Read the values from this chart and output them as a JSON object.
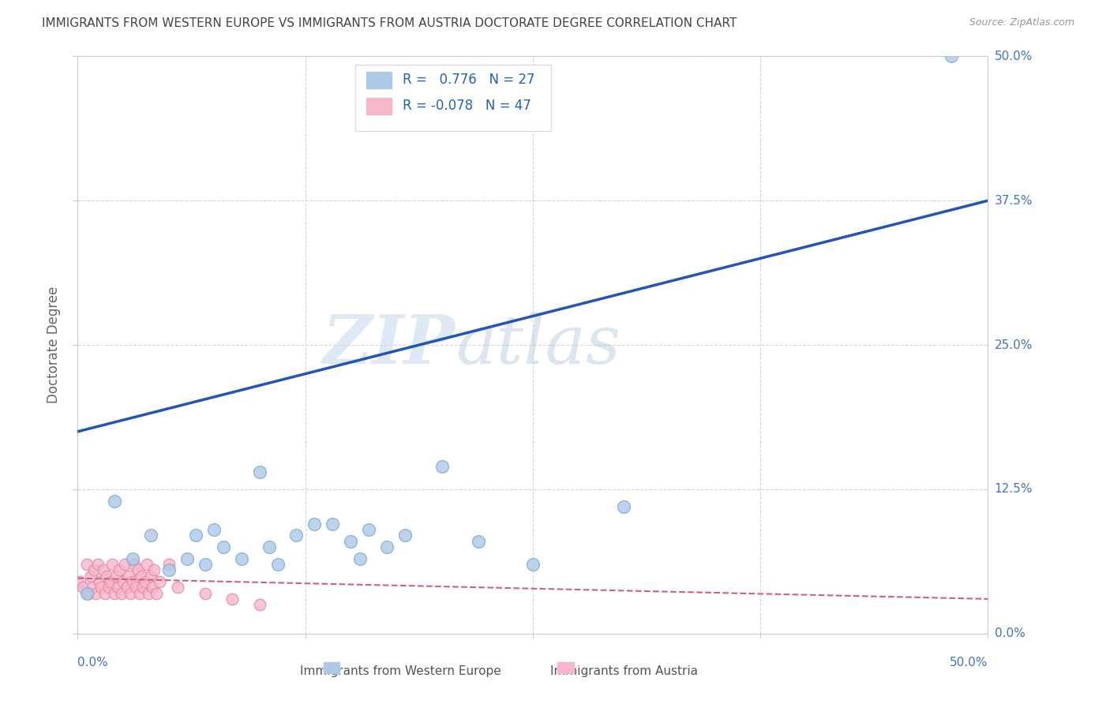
{
  "title": "IMMIGRANTS FROM WESTERN EUROPE VS IMMIGRANTS FROM AUSTRIA DOCTORATE DEGREE CORRELATION CHART",
  "source": "Source: ZipAtlas.com",
  "ylabel": "Doctorate Degree",
  "xlim": [
    0.0,
    0.5
  ],
  "ylim": [
    0.0,
    0.5
  ],
  "ytick_labels": [
    "0.0%",
    "12.5%",
    "25.0%",
    "37.5%",
    "50.0%"
  ],
  "ytick_values": [
    0.0,
    0.125,
    0.25,
    0.375,
    0.5
  ],
  "xtick_values": [
    0.0,
    0.125,
    0.25,
    0.375,
    0.5
  ],
  "watermark_zip": "ZIP",
  "watermark_atlas": "atlas",
  "r_blue": 0.776,
  "n_blue": 27,
  "r_pink": -0.078,
  "n_pink": 47,
  "blue_scatter_color": "#adc8e8",
  "blue_scatter_edge": "#7aabd4",
  "pink_scatter_color": "#f5b8c8",
  "pink_scatter_edge": "#e888a8",
  "blue_line_color": "#2255b8",
  "pink_line_color": "#d06080",
  "grid_color": "#cccccc",
  "background_color": "#ffffff",
  "title_color": "#444444",
  "axis_label_color": "#666666",
  "tick_label_color_right": "#4472c4",
  "blue_line_x0": 0.0,
  "blue_line_y0": 0.175,
  "blue_line_x1": 0.5,
  "blue_line_y1": 0.375,
  "pink_line_x0": 0.0,
  "pink_line_y0": 0.048,
  "pink_line_x1": 0.5,
  "pink_line_y1": 0.03,
  "blue_x": [
    0.005,
    0.02,
    0.03,
    0.04,
    0.05,
    0.06,
    0.065,
    0.07,
    0.075,
    0.08,
    0.09,
    0.1,
    0.105,
    0.11,
    0.12,
    0.13,
    0.14,
    0.15,
    0.155,
    0.16,
    0.17,
    0.18,
    0.2,
    0.22,
    0.25,
    0.3,
    0.48
  ],
  "blue_y": [
    0.035,
    0.115,
    0.065,
    0.085,
    0.055,
    0.065,
    0.085,
    0.06,
    0.09,
    0.075,
    0.065,
    0.14,
    0.075,
    0.06,
    0.085,
    0.095,
    0.095,
    0.08,
    0.065,
    0.09,
    0.075,
    0.085,
    0.145,
    0.08,
    0.06,
    0.11,
    0.5
  ],
  "pink_x": [
    0.001,
    0.003,
    0.005,
    0.006,
    0.007,
    0.008,
    0.009,
    0.01,
    0.011,
    0.012,
    0.013,
    0.014,
    0.015,
    0.016,
    0.017,
    0.018,
    0.019,
    0.02,
    0.021,
    0.022,
    0.023,
    0.024,
    0.025,
    0.026,
    0.027,
    0.028,
    0.029,
    0.03,
    0.031,
    0.032,
    0.033,
    0.034,
    0.035,
    0.036,
    0.037,
    0.038,
    0.039,
    0.04,
    0.041,
    0.042,
    0.043,
    0.045,
    0.05,
    0.055,
    0.07,
    0.085,
    0.1
  ],
  "pink_y": [
    0.045,
    0.04,
    0.06,
    0.035,
    0.05,
    0.04,
    0.055,
    0.035,
    0.06,
    0.045,
    0.04,
    0.055,
    0.035,
    0.05,
    0.04,
    0.045,
    0.06,
    0.035,
    0.05,
    0.04,
    0.055,
    0.035,
    0.045,
    0.06,
    0.04,
    0.05,
    0.035,
    0.045,
    0.06,
    0.04,
    0.055,
    0.035,
    0.05,
    0.04,
    0.045,
    0.06,
    0.035,
    0.05,
    0.04,
    0.055,
    0.035,
    0.045,
    0.06,
    0.04,
    0.035,
    0.03,
    0.025
  ]
}
